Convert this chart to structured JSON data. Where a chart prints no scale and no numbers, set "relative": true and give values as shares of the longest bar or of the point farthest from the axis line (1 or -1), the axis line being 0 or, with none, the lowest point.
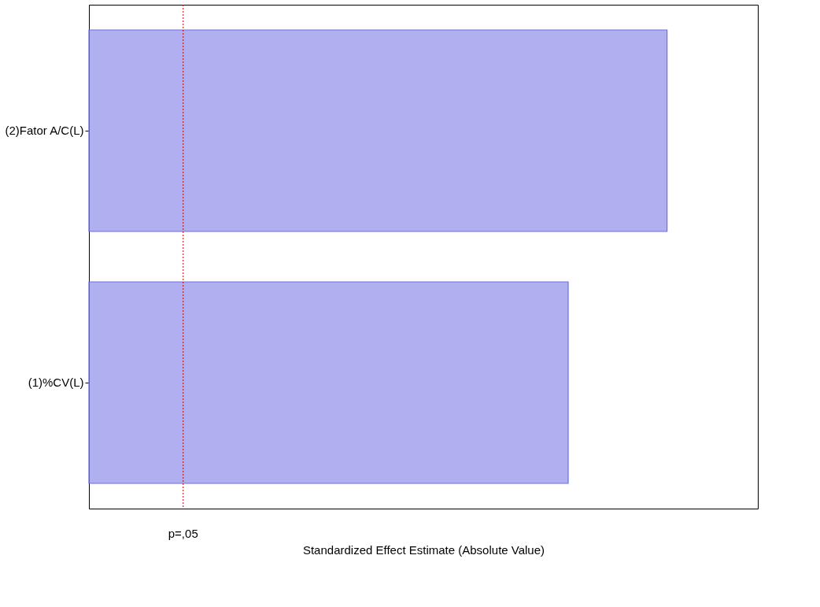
{
  "chart_data": {
    "type": "bar",
    "orientation": "horizontal",
    "relative": true,
    "categories": [
      "(2)Fator A/C(L)",
      "(1)%CV(L)"
    ],
    "values": [
      1,
      0.829
    ],
    "color": "#6f6fe6",
    "xlabel": "Standardized Effect Estimate (Absolute Value)",
    "ref_lines": [
      {
        "axis": "x",
        "value": 0.163,
        "label": "p=,05",
        "color": "#cc0000",
        "line_style": "dotted"
      }
    ],
    "grid": false
  }
}
